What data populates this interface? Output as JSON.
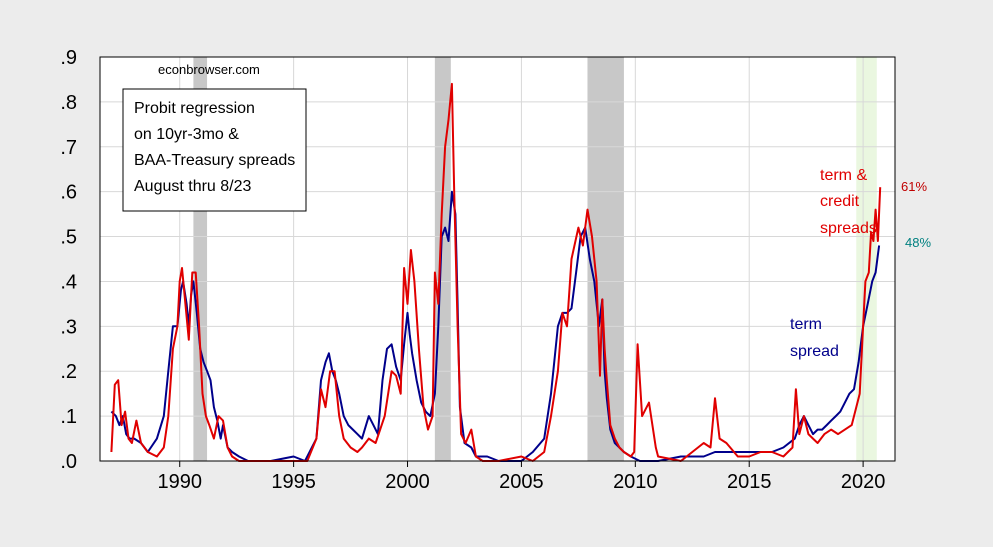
{
  "source_label": "econbrowser.com",
  "box_lines": [
    "Probit regression",
    "on 10yr-3mo &",
    "BAA-Treasury spreads",
    "August thru 8/23"
  ],
  "chart_data": {
    "type": "line",
    "title": "",
    "xlabel": "",
    "ylabel": "",
    "xlim": [
      1986.5,
      2021.4
    ],
    "ylim": [
      0,
      0.9
    ],
    "yticks": [
      0.0,
      0.1,
      0.2,
      0.3,
      0.4,
      0.5,
      0.6,
      0.7,
      0.8,
      0.9
    ],
    "ytick_labels": [
      ".0",
      ".1",
      ".2",
      ".3",
      ".4",
      ".5",
      ".6",
      ".7",
      ".8",
      ".9"
    ],
    "xticks": [
      1990,
      1995,
      2000,
      2005,
      2010,
      2015,
      2020
    ],
    "xtick_labels": [
      "1990",
      "1995",
      "2000",
      "2005",
      "2010",
      "2015",
      "2020"
    ],
    "grid": true,
    "recession_shading": [
      [
        1990.6,
        1991.2
      ],
      [
        2001.2,
        2001.9
      ],
      [
        2007.9,
        2009.5
      ]
    ],
    "forecast_shading": [
      [
        2019.7,
        2020.6
      ]
    ],
    "colors": {
      "term": "#00008b",
      "credit": "#e00000",
      "recession": "#c8c8c8",
      "forecast": "#eaf7e0",
      "pct48": "#008080"
    },
    "series": [
      {
        "name": "term spread",
        "color": "#00008b",
        "x": [
          1987.0,
          1987.2,
          1987.35,
          1987.5,
          1987.65,
          1987.8,
          1988.0,
          1988.3,
          1988.6,
          1989.0,
          1989.3,
          1989.5,
          1989.7,
          1989.9,
          1990.05,
          1990.15,
          1990.3,
          1990.4,
          1990.5,
          1990.6,
          1990.75,
          1990.9,
          1991.05,
          1991.2,
          1991.35,
          1991.5,
          1991.65,
          1991.8,
          1991.9,
          1992.1,
          1992.3,
          1992.6,
          1993.0,
          1994.0,
          1995.0,
          1995.5,
          1996.0,
          1996.2,
          1996.4,
          1996.55,
          1996.7,
          1996.85,
          1997.0,
          1997.2,
          1997.4,
          1997.6,
          1997.8,
          1998.0,
          1998.3,
          1998.5,
          1998.7,
          1998.9,
          1999.1,
          1999.3,
          1999.5,
          1999.7,
          1999.85,
          2000.0,
          2000.1,
          2000.2,
          2000.4,
          2000.6,
          2000.8,
          2001.0,
          2001.2,
          2001.35,
          2001.5,
          2001.65,
          2001.8,
          2001.95,
          2002.1,
          2002.2,
          2002.3,
          2002.5,
          2002.8,
          2003.0,
          2003.5,
          2004.0,
          2005.0,
          2005.5,
          2006.0,
          2006.3,
          2006.6,
          2006.8,
          2007.0,
          2007.2,
          2007.4,
          2007.6,
          2007.8,
          2008.0,
          2008.2,
          2008.4,
          2008.55,
          2008.65,
          2008.75,
          2008.9,
          2009.1,
          2009.3,
          2009.5,
          2009.8,
          2010.2,
          2011.0,
          2012.0,
          2013.0,
          2013.5,
          2014.0,
          2015.0,
          2016.0,
          2016.5,
          2017.0,
          2017.2,
          2017.4,
          2017.6,
          2017.8,
          2018.0,
          2018.2,
          2018.4,
          2018.6,
          2018.8,
          2019.0,
          2019.2,
          2019.4,
          2019.6,
          2019.8,
          2020.0,
          2020.2,
          2020.4,
          2020.55,
          2020.7
        ],
        "y": [
          0.11,
          0.1,
          0.08,
          0.1,
          0.06,
          0.05,
          0.05,
          0.04,
          0.02,
          0.05,
          0.1,
          0.2,
          0.3,
          0.3,
          0.38,
          0.4,
          0.35,
          0.3,
          0.37,
          0.4,
          0.33,
          0.25,
          0.22,
          0.2,
          0.18,
          0.12,
          0.09,
          0.05,
          0.08,
          0.03,
          0.02,
          0.01,
          0.0,
          0.0,
          0.01,
          0.0,
          0.05,
          0.18,
          0.22,
          0.24,
          0.2,
          0.18,
          0.15,
          0.1,
          0.08,
          0.07,
          0.06,
          0.05,
          0.1,
          0.08,
          0.06,
          0.18,
          0.25,
          0.26,
          0.21,
          0.18,
          0.26,
          0.33,
          0.28,
          0.24,
          0.18,
          0.13,
          0.11,
          0.1,
          0.15,
          0.3,
          0.5,
          0.52,
          0.49,
          0.6,
          0.55,
          0.35,
          0.12,
          0.04,
          0.03,
          0.01,
          0.01,
          0.0,
          0.0,
          0.02,
          0.05,
          0.15,
          0.3,
          0.33,
          0.33,
          0.34,
          0.42,
          0.5,
          0.52,
          0.45,
          0.4,
          0.3,
          0.36,
          0.2,
          0.14,
          0.07,
          0.04,
          0.03,
          0.02,
          0.01,
          0.0,
          0.0,
          0.01,
          0.01,
          0.02,
          0.02,
          0.02,
          0.02,
          0.03,
          0.05,
          0.08,
          0.1,
          0.08,
          0.06,
          0.07,
          0.07,
          0.08,
          0.09,
          0.1,
          0.11,
          0.13,
          0.15,
          0.16,
          0.22,
          0.3,
          0.35,
          0.4,
          0.42,
          0.48
        ]
      },
      {
        "name": "term & credit spreads",
        "color": "#e00000",
        "x": [
          1987.0,
          1987.15,
          1987.3,
          1987.45,
          1987.6,
          1987.75,
          1987.9,
          1988.1,
          1988.3,
          1988.6,
          1989.0,
          1989.3,
          1989.5,
          1989.7,
          1989.9,
          1990.0,
          1990.1,
          1990.25,
          1990.4,
          1990.55,
          1990.7,
          1990.85,
          1991.0,
          1991.15,
          1991.3,
          1991.5,
          1991.7,
          1991.9,
          1992.1,
          1992.3,
          1992.6,
          1993.0,
          1994.0,
          1995.0,
          1995.6,
          1996.0,
          1996.2,
          1996.4,
          1996.6,
          1996.8,
          1997.0,
          1997.2,
          1997.5,
          1997.8,
          1998.0,
          1998.3,
          1998.6,
          1999.0,
          1999.3,
          1999.5,
          1999.7,
          1999.85,
          2000.0,
          2000.15,
          2000.3,
          2000.5,
          2000.7,
          2000.9,
          2001.1,
          2001.2,
          2001.35,
          2001.5,
          2001.65,
          2001.8,
          2001.95,
          2002.05,
          2002.2,
          2002.35,
          2002.55,
          2002.8,
          2003.0,
          2003.3,
          2003.6,
          2004.0,
          2005.0,
          2005.5,
          2006.0,
          2006.3,
          2006.6,
          2006.8,
          2007.0,
          2007.2,
          2007.5,
          2007.7,
          2007.9,
          2008.1,
          2008.3,
          2008.45,
          2008.55,
          2008.65,
          2008.75,
          2008.9,
          2009.1,
          2009.3,
          2009.5,
          2009.8,
          2009.95,
          2010.1,
          2010.3,
          2010.6,
          2010.9,
          2011.0,
          2012.0,
          2012.5,
          2013.0,
          2013.3,
          2013.5,
          2013.7,
          2014.0,
          2014.5,
          2015.0,
          2015.5,
          2016.0,
          2016.5,
          2016.9,
          2017.05,
          2017.2,
          2017.4,
          2017.6,
          2017.8,
          2018.0,
          2018.3,
          2018.6,
          2018.9,
          2019.2,
          2019.5,
          2019.7,
          2019.85,
          2020.0,
          2020.1,
          2020.25,
          2020.35,
          2020.45,
          2020.55,
          2020.65,
          2020.75
        ],
        "y": [
          0.02,
          0.17,
          0.18,
          0.08,
          0.11,
          0.05,
          0.04,
          0.09,
          0.04,
          0.02,
          0.01,
          0.03,
          0.1,
          0.25,
          0.3,
          0.4,
          0.43,
          0.35,
          0.27,
          0.42,
          0.42,
          0.3,
          0.15,
          0.1,
          0.08,
          0.05,
          0.1,
          0.09,
          0.03,
          0.01,
          0.0,
          0.0,
          0.0,
          0.0,
          0.0,
          0.05,
          0.16,
          0.12,
          0.2,
          0.2,
          0.1,
          0.05,
          0.03,
          0.02,
          0.03,
          0.05,
          0.04,
          0.1,
          0.2,
          0.19,
          0.15,
          0.43,
          0.35,
          0.47,
          0.4,
          0.25,
          0.12,
          0.07,
          0.1,
          0.42,
          0.35,
          0.55,
          0.7,
          0.76,
          0.84,
          0.6,
          0.3,
          0.06,
          0.04,
          0.07,
          0.01,
          0.0,
          0.0,
          0.0,
          0.01,
          0.0,
          0.02,
          0.1,
          0.2,
          0.33,
          0.3,
          0.45,
          0.52,
          0.48,
          0.56,
          0.5,
          0.4,
          0.19,
          0.36,
          0.25,
          0.18,
          0.08,
          0.05,
          0.03,
          0.02,
          0.01,
          0.02,
          0.26,
          0.1,
          0.13,
          0.03,
          0.01,
          0.0,
          0.02,
          0.04,
          0.03,
          0.14,
          0.05,
          0.04,
          0.01,
          0.01,
          0.02,
          0.02,
          0.01,
          0.03,
          0.16,
          0.06,
          0.1,
          0.06,
          0.05,
          0.04,
          0.06,
          0.07,
          0.06,
          0.07,
          0.08,
          0.12,
          0.15,
          0.3,
          0.4,
          0.42,
          0.51,
          0.49,
          0.56,
          0.49,
          0.61
        ]
      }
    ],
    "annotations": {
      "credit_label": [
        "term &",
        "credit",
        "spreads"
      ],
      "term_label": [
        "term",
        "spread"
      ],
      "credit_end": "61%",
      "term_end": "48%"
    }
  }
}
